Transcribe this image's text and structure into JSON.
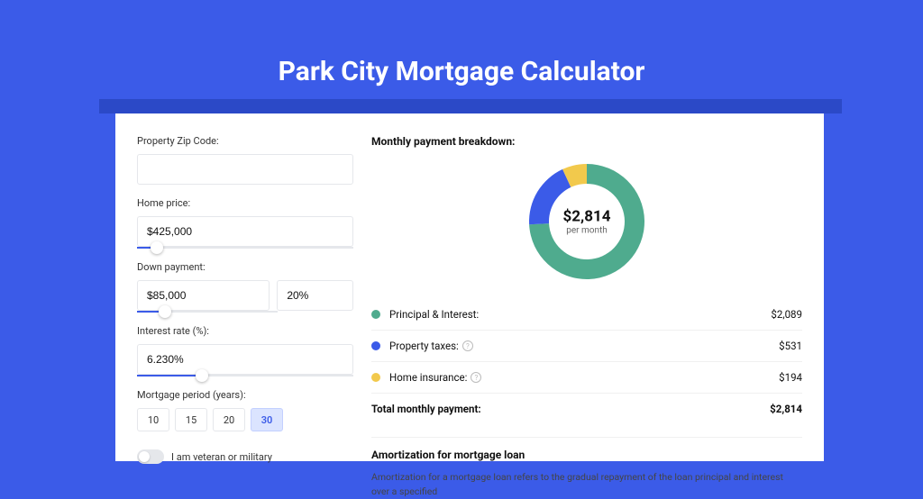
{
  "page": {
    "title": "Park City Mortgage Calculator",
    "background_color": "#3b5be8",
    "shadow_color": "#2b49c7",
    "card_background": "#ffffff"
  },
  "form": {
    "zip": {
      "label": "Property Zip Code:",
      "value": ""
    },
    "home_price": {
      "label": "Home price:",
      "value": "$425,000",
      "slider_pct": 9
    },
    "down_payment": {
      "label": "Down payment:",
      "value": "$85,000",
      "pct": "20%",
      "slider_pct": 20
    },
    "interest_rate": {
      "label": "Interest rate (%):",
      "value": "6.230%",
      "slider_pct": 30
    },
    "period": {
      "label": "Mortgage period (years):",
      "options": [
        "10",
        "15",
        "20",
        "30"
      ],
      "selected": "30"
    },
    "veteran": {
      "label": "I am veteran or military",
      "checked": false
    }
  },
  "breakdown": {
    "title": "Monthly payment breakdown:",
    "center_amount": "$2,814",
    "center_sub": "per month",
    "donut": {
      "size": 140,
      "thickness": 22,
      "slices": [
        {
          "color": "#4fab8e",
          "pct": 74.2
        },
        {
          "color": "#3b5be8",
          "pct": 18.9
        },
        {
          "color": "#f2c94c",
          "pct": 6.9
        }
      ]
    },
    "items": [
      {
        "dot": "#4fab8e",
        "label": "Principal & Interest:",
        "value": "$2,089",
        "help": false
      },
      {
        "dot": "#3b5be8",
        "label": "Property taxes:",
        "value": "$531",
        "help": true
      },
      {
        "dot": "#f2c94c",
        "label": "Home insurance:",
        "value": "$194",
        "help": true
      }
    ],
    "total": {
      "label": "Total monthly payment:",
      "value": "$2,814"
    }
  },
  "amortization": {
    "title": "Amortization for mortgage loan",
    "text": "Amortization for a mortgage loan refers to the gradual repayment of the loan principal and interest over a specified"
  }
}
